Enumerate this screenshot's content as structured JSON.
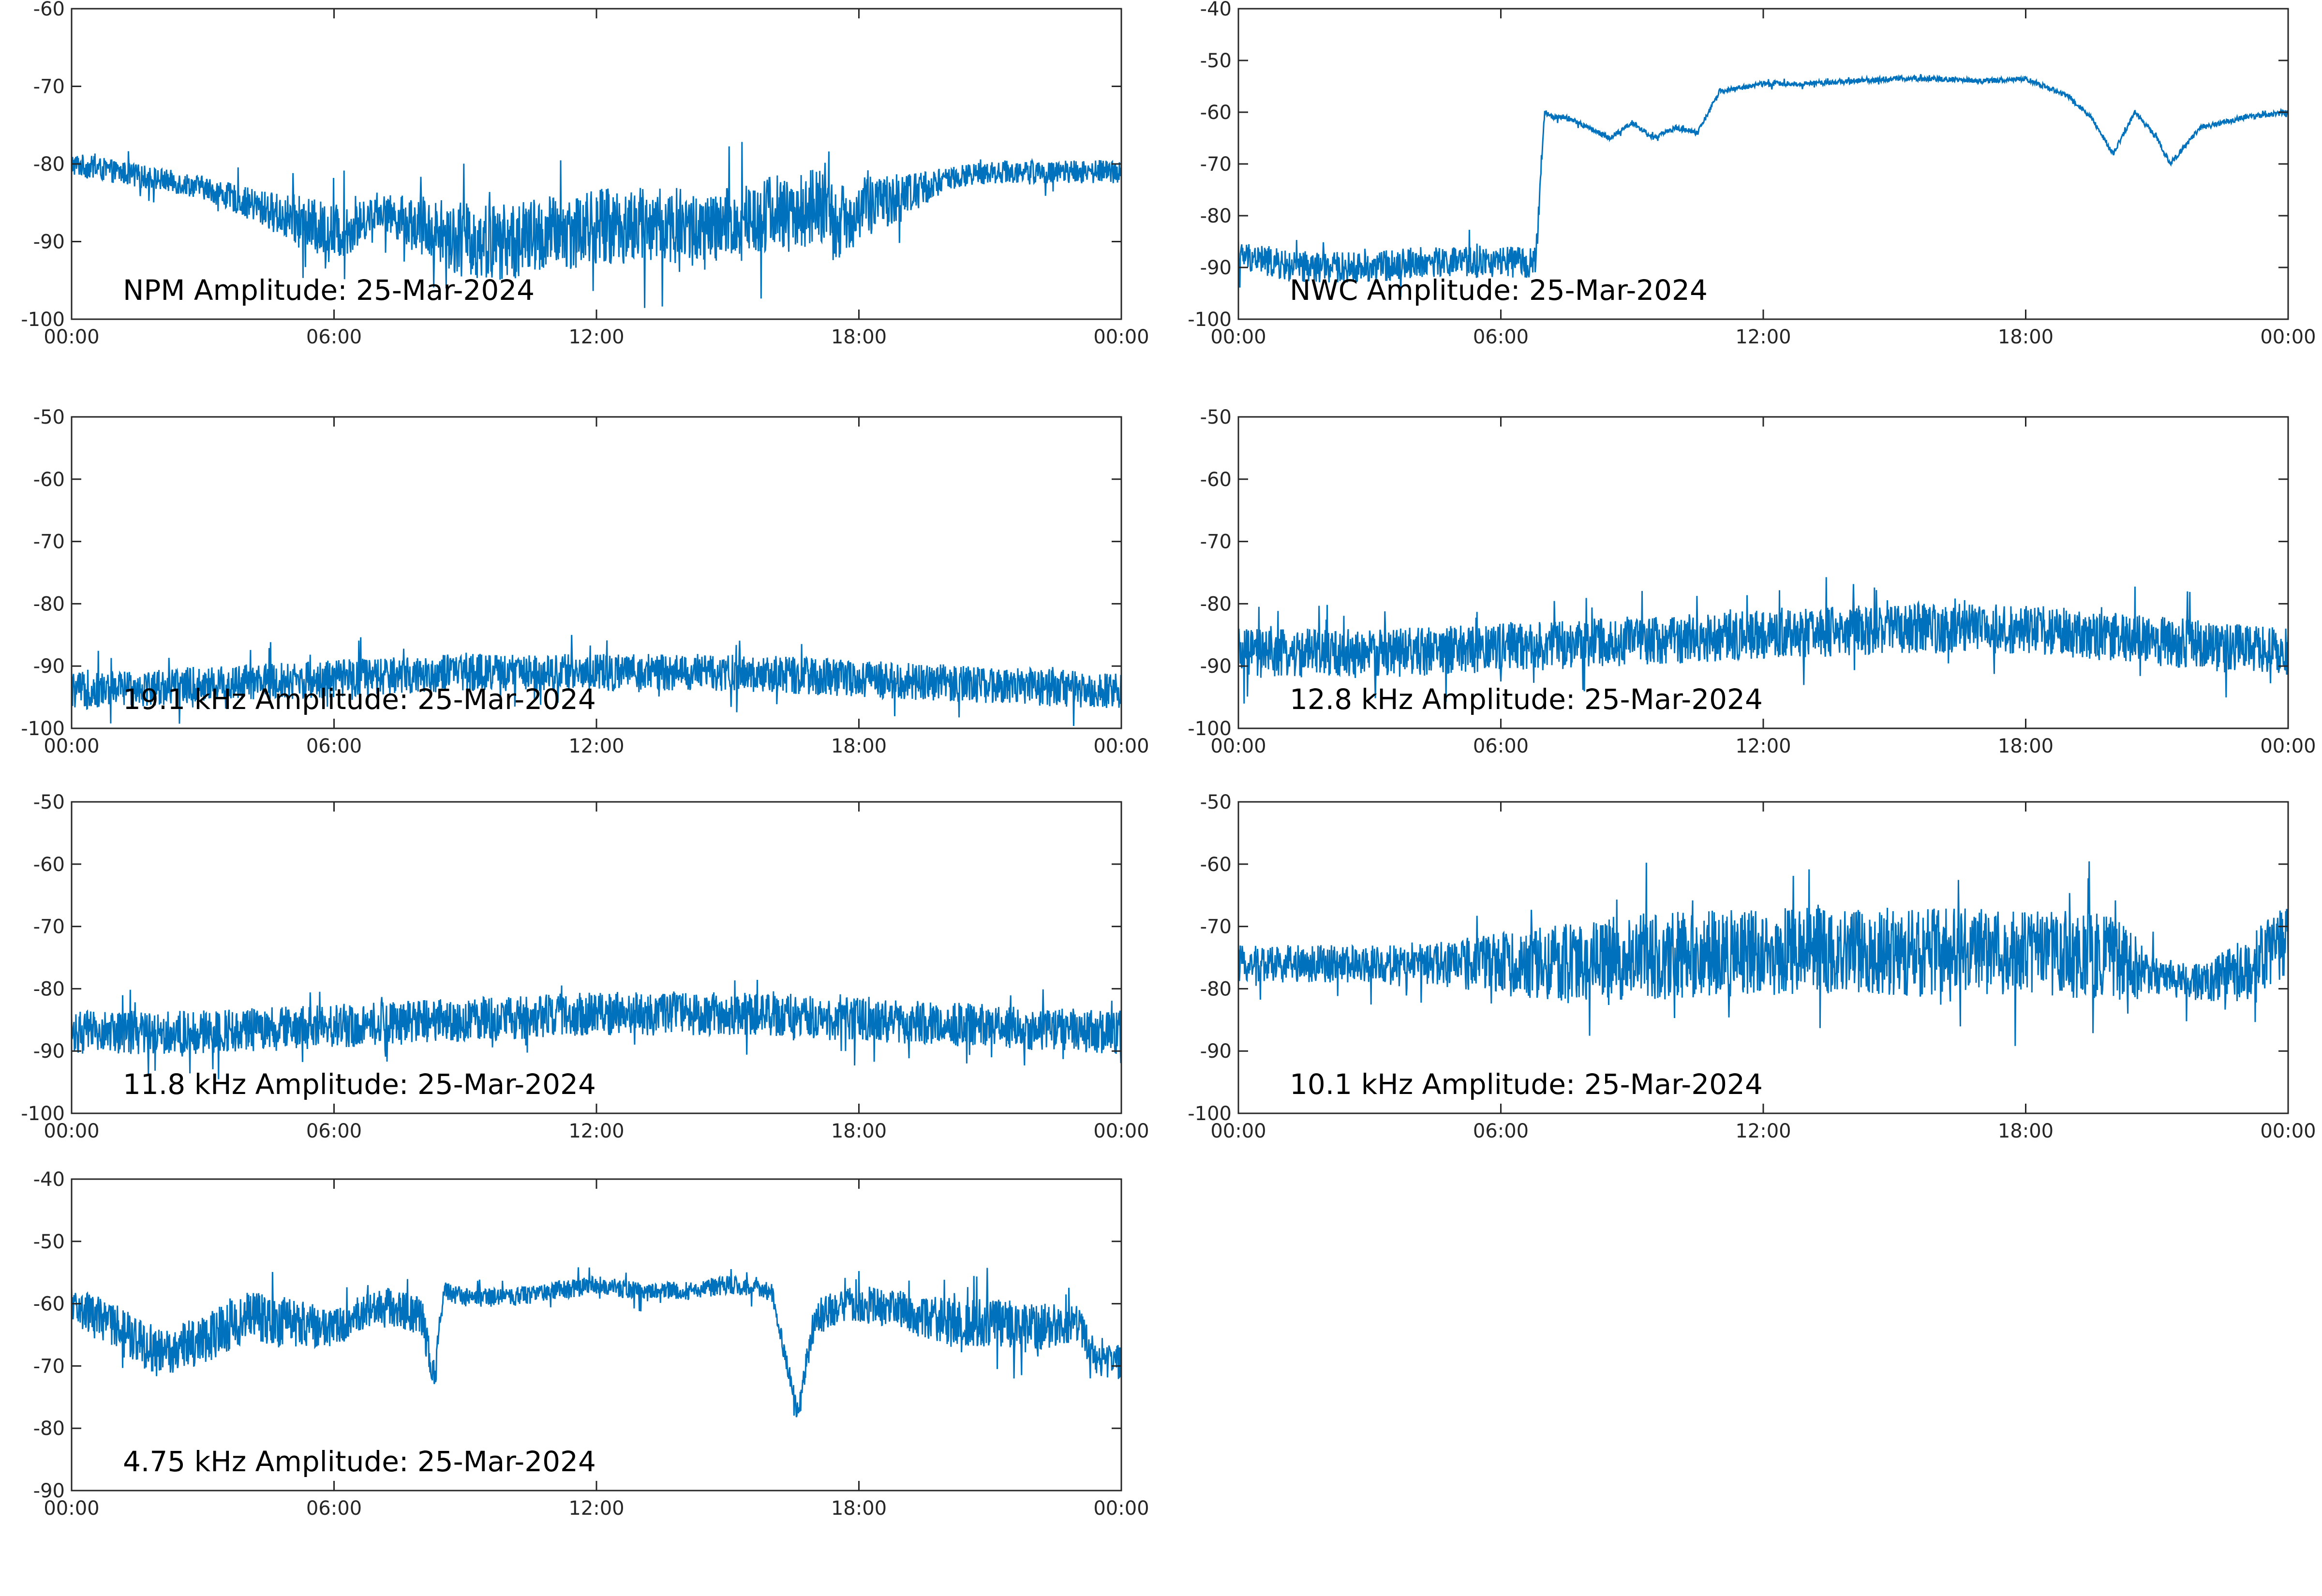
{
  "figure": {
    "line_color": "#0072BD",
    "axis_color": "#262626",
    "background": "#ffffff"
  },
  "chart_data": [
    {
      "type": "line",
      "title": "NPM Amplitude: 25-Mar-2024",
      "xlabel": "",
      "ylabel": "",
      "xlim": [
        "00:00",
        "00:00"
      ],
      "xticks": [
        "00:00",
        "06:00",
        "12:00",
        "18:00",
        "00:00"
      ],
      "ylim": [
        -100,
        -60
      ],
      "yticks": [
        -60,
        -70,
        -80,
        -90,
        -100
      ],
      "grid": false,
      "series": [
        {
          "x": [
            0,
            1,
            2,
            3,
            4,
            5,
            6,
            6.5,
            7,
            7.5,
            8,
            8.5,
            9,
            10,
            11,
            12,
            13,
            14,
            14.5,
            15,
            16,
            16.5,
            17,
            17.5,
            18,
            19,
            20,
            21,
            22,
            23,
            24
          ],
          "values": [
            -80,
            -81,
            -82,
            -83,
            -85,
            -87,
            -89,
            -88,
            -86,
            -87,
            -88,
            -89,
            -90,
            -90,
            -89,
            -88,
            -88,
            -88,
            -89,
            -88,
            -86,
            -87,
            -85,
            -88,
            -86,
            -84,
            -82,
            -81,
            -81,
            -81,
            -81
          ],
          "noise": [
            1.5,
            1.5,
            1.5,
            1.5,
            2,
            3,
            4,
            3,
            2,
            3,
            4,
            4,
            5,
            5,
            5,
            5,
            5,
            5,
            5,
            5,
            5,
            5,
            5,
            5,
            4,
            3,
            1.5,
            1.5,
            1.5,
            1.5,
            1.5
          ]
        }
      ]
    },
    {
      "type": "line",
      "title": "NWC Amplitude: 25-Mar-2024",
      "xlabel": "",
      "ylabel": "",
      "xlim": [
        "00:00",
        "00:00"
      ],
      "xticks": [
        "00:00",
        "06:00",
        "12:00",
        "18:00",
        "00:00"
      ],
      "ylim": [
        -100,
        -40
      ],
      "yticks": [
        -40,
        -50,
        -60,
        -70,
        -80,
        -90,
        -100
      ],
      "grid": false,
      "series": [
        {
          "x": [
            0,
            0.3,
            1.2,
            2,
            3,
            4,
            5,
            6,
            6.8,
            7,
            7.2,
            7.5,
            8,
            8.5,
            9,
            9.5,
            10,
            10.5,
            11,
            12,
            13,
            14,
            15,
            16,
            17,
            18,
            19,
            19.5,
            20,
            20.5,
            21,
            21.3,
            22,
            23,
            24
          ],
          "values": [
            -88,
            -88,
            -90,
            -90,
            -90,
            -89,
            -89,
            -89,
            -89,
            -60,
            -61,
            -61,
            -63,
            -65,
            -62,
            -65,
            -63,
            -64,
            -56,
            -54.5,
            -54.5,
            -54,
            -53.5,
            -53.5,
            -54,
            -53.5,
            -57,
            -61,
            -68,
            -60,
            -65,
            -70,
            -63,
            -61,
            -60
          ],
          "noise": [
            3,
            3,
            3,
            3,
            3,
            3,
            3,
            3,
            3,
            0.5,
            0.5,
            0.5,
            0.5,
            0.5,
            0.5,
            0.5,
            0.5,
            0.5,
            0.5,
            0.5,
            0.5,
            0.5,
            0.5,
            0.5,
            0.5,
            0.5,
            0.5,
            0.5,
            0.5,
            0.5,
            0.5,
            0.5,
            0.5,
            0.5,
            0.5
          ]
        }
      ]
    },
    {
      "type": "line",
      "title": "19.1 kHz Amplitude: 25-Mar-2024",
      "xlabel": "",
      "ylabel": "",
      "xlim": [
        "00:00",
        "00:00"
      ],
      "xticks": [
        "00:00",
        "06:00",
        "12:00",
        "18:00",
        "00:00"
      ],
      "ylim": [
        -100,
        -50
      ],
      "yticks": [
        -50,
        -60,
        -70,
        -80,
        -90,
        -100
      ],
      "grid": false,
      "series": [
        {
          "x": [
            0,
            3,
            6,
            9,
            12,
            15,
            18,
            21,
            24
          ],
          "values": [
            -94,
            -93,
            -92,
            -91,
            -91,
            -91,
            -92,
            -93,
            -94
          ],
          "noise": [
            3,
            3,
            3,
            3,
            3,
            3,
            3,
            3,
            3
          ]
        }
      ]
    },
    {
      "type": "line",
      "title": "12.8 kHz Amplitude: 25-Mar-2024",
      "xlabel": "",
      "ylabel": "",
      "xlim": [
        "00:00",
        "00:00"
      ],
      "xticks": [
        "00:00",
        "06:00",
        "12:00",
        "18:00",
        "00:00"
      ],
      "ylim": [
        -100,
        -50
      ],
      "yticks": [
        -50,
        -60,
        -70,
        -80,
        -90,
        -100
      ],
      "grid": false,
      "series": [
        {
          "x": [
            0,
            3,
            6,
            9,
            12,
            15,
            18,
            21,
            24
          ],
          "values": [
            -88,
            -88,
            -87,
            -86,
            -85,
            -84,
            -84,
            -86,
            -88
          ],
          "noise": [
            4,
            4,
            4,
            4,
            4,
            4,
            4,
            4,
            4
          ]
        }
      ]
    },
    {
      "type": "line",
      "title": "11.8 kHz Amplitude: 25-Mar-2024",
      "xlabel": "",
      "ylabel": "",
      "xlim": [
        "00:00",
        "00:00"
      ],
      "xticks": [
        "00:00",
        "06:00",
        "12:00",
        "18:00",
        "00:00"
      ],
      "ylim": [
        -100,
        -50
      ],
      "yticks": [
        -50,
        -60,
        -70,
        -80,
        -90,
        -100
      ],
      "grid": false,
      "series": [
        {
          "x": [
            0,
            3,
            6,
            9,
            12,
            15,
            18,
            21,
            24
          ],
          "values": [
            -87,
            -87,
            -86,
            -85,
            -84,
            -84,
            -85,
            -86,
            -87
          ],
          "noise": [
            3.5,
            3.5,
            3.5,
            3.5,
            3.5,
            3.5,
            3.5,
            3.5,
            3.5
          ]
        }
      ]
    },
    {
      "type": "line",
      "title": "10.1 kHz Amplitude: 25-Mar-2024",
      "xlabel": "",
      "ylabel": "",
      "xlim": [
        "00:00",
        "00:00"
      ],
      "xticks": [
        "00:00",
        "06:00",
        "12:00",
        "18:00",
        "00:00"
      ],
      "ylim": [
        -100,
        -50
      ],
      "yticks": [
        -50,
        -60,
        -70,
        -80,
        -90,
        -100
      ],
      "grid": false,
      "series": [
        {
          "x": [
            0,
            2,
            4,
            5,
            7,
            9,
            12,
            15,
            18,
            20,
            21,
            22,
            23,
            24
          ],
          "values": [
            -76,
            -76,
            -76,
            -76,
            -76,
            -75,
            -74,
            -74,
            -74,
            -75,
            -78,
            -79,
            -77,
            -72
          ],
          "noise": [
            3,
            3,
            3,
            4,
            6,
            7,
            7,
            7,
            7,
            7,
            3,
            3,
            5,
            6
          ]
        }
      ]
    },
    {
      "type": "line",
      "title": "4.75 kHz Amplitude: 25-Mar-2024",
      "xlabel": "",
      "ylabel": "",
      "xlim": [
        "00:00",
        "00:00"
      ],
      "xticks": [
        "00:00",
        "06:00",
        "12:00",
        "18:00",
        "00:00"
      ],
      "ylim": [
        -90,
        -40
      ],
      "yticks": [
        -40,
        -50,
        -60,
        -70,
        -80,
        -90
      ],
      "grid": false,
      "series": [
        {
          "x": [
            0,
            1,
            2,
            3,
            4,
            5,
            6,
            7,
            8,
            8.3,
            8.5,
            9,
            10,
            11,
            12,
            13,
            14,
            15,
            16,
            16.6,
            17,
            18,
            19,
            20,
            21,
            22,
            23,
            23.5,
            24
          ],
          "values": [
            -60,
            -64,
            -68,
            -66,
            -62,
            -63,
            -64,
            -60,
            -62,
            -72,
            -58,
            -59,
            -59,
            -58,
            -57,
            -58,
            -58,
            -57,
            -58,
            -78,
            -62,
            -60,
            -61,
            -63,
            -63,
            -64,
            -63,
            -70,
            -69
          ],
          "noise": [
            3,
            4,
            4,
            4,
            4,
            4,
            3,
            3,
            3,
            3,
            1.5,
            1.5,
            1.5,
            1.5,
            1.5,
            1.5,
            1.5,
            1.5,
            1.5,
            2,
            3,
            3,
            3,
            4,
            4,
            4,
            3,
            3,
            3
          ]
        }
      ]
    }
  ]
}
